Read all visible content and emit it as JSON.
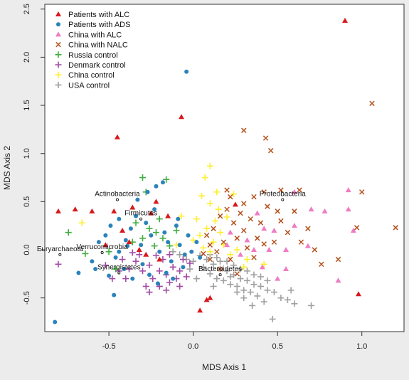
{
  "chart_data": {
    "type": "scatter",
    "xlabel": "MDS Axis 1",
    "ylabel": "MDS Axis 2",
    "xlim": [
      -0.88,
      1.25
    ],
    "ylim": [
      -0.85,
      2.55
    ],
    "xticks": [
      -0.5,
      0.0,
      0.5,
      1.0
    ],
    "yticks": [
      -0.5,
      0.0,
      0.5,
      1.0,
      1.5,
      2.0,
      2.5
    ],
    "xtick_labels": [
      "-0.5",
      "0.0",
      "0.5",
      "1.0"
    ],
    "ytick_labels": [
      "-0.5",
      "0.0",
      "0.5",
      "1.0",
      "1.5",
      "2.0",
      "2.5"
    ],
    "legend_position": "top-left",
    "series": [
      {
        "name": "Patients with ALC",
        "marker": "triangle",
        "color": "#d7191c",
        "points": [
          [
            0.9,
            2.38
          ],
          [
            -0.07,
            1.38
          ],
          [
            -0.45,
            1.17
          ],
          [
            -0.8,
            0.4
          ],
          [
            -0.7,
            0.42
          ],
          [
            -0.6,
            0.4
          ],
          [
            -0.47,
            0.4
          ],
          [
            -0.36,
            0.44
          ],
          [
            -0.22,
            0.5
          ],
          [
            -0.25,
            0.38
          ],
          [
            -0.15,
            0.35
          ],
          [
            -0.42,
            0.2
          ],
          [
            -0.38,
            0.08
          ],
          [
            -0.32,
            0.0
          ],
          [
            -0.28,
            -0.05
          ],
          [
            -0.2,
            -0.1
          ],
          [
            -0.52,
            0.05
          ],
          [
            0.04,
            -0.63
          ],
          [
            0.08,
            -0.52
          ],
          [
            0.1,
            -0.5
          ],
          [
            0.98,
            -0.46
          ],
          [
            0.25,
            0.47
          ]
        ]
      },
      {
        "name": "Patients with ADS",
        "marker": "circle",
        "color": "#2b83ba",
        "points": [
          [
            -0.04,
            1.85
          ],
          [
            -0.82,
            -0.75
          ],
          [
            -0.47,
            -0.47
          ],
          [
            -0.6,
            -0.12
          ],
          [
            -0.68,
            -0.24
          ],
          [
            -0.56,
            0.08
          ],
          [
            -0.52,
            0.15
          ],
          [
            -0.49,
            0.25
          ],
          [
            -0.44,
            0.32
          ],
          [
            -0.4,
            0.1
          ],
          [
            -0.37,
            0.22
          ],
          [
            -0.34,
            0.35
          ],
          [
            -0.31,
            0.05
          ],
          [
            -0.28,
            0.28
          ],
          [
            -0.25,
            0.15
          ],
          [
            -0.23,
            0.42
          ],
          [
            -0.2,
            -0.02
          ],
          [
            -0.17,
            0.18
          ],
          [
            -0.15,
            0.08
          ],
          [
            -0.13,
            -0.12
          ],
          [
            -0.1,
            0.25
          ],
          [
            -0.08,
            0.05
          ],
          [
            -0.05,
            -0.05
          ],
          [
            -0.03,
            0.15
          ],
          [
            -0.01,
            -0.02
          ],
          [
            -0.46,
            -0.08
          ],
          [
            -0.41,
            -0.2
          ],
          [
            -0.36,
            -0.3
          ],
          [
            -0.3,
            -0.15
          ],
          [
            -0.26,
            -0.26
          ],
          [
            -0.21,
            -0.35
          ],
          [
            -0.16,
            -0.24
          ],
          [
            -0.12,
            -0.3
          ],
          [
            -0.06,
            -0.18
          ],
          [
            -0.33,
            0.52
          ],
          [
            -0.27,
            0.6
          ],
          [
            -0.22,
            0.66
          ],
          [
            -0.18,
            0.7
          ],
          [
            -0.39,
            0.04
          ],
          [
            -0.44,
            -0.02
          ],
          [
            -0.09,
            0.32
          ],
          [
            0.02,
            0.08
          ],
          [
            0.04,
            -0.08
          ],
          [
            -0.58,
            -0.2
          ],
          [
            -0.5,
            -0.27
          ]
        ]
      },
      {
        "name": "China with ALC",
        "marker": "triangle",
        "color": "#f07cc4",
        "points": [
          [
            0.6,
            0.6
          ],
          [
            0.92,
            0.62
          ],
          [
            0.92,
            0.42
          ],
          [
            0.95,
            0.2
          ],
          [
            0.7,
            0.42
          ],
          [
            0.78,
            0.4
          ],
          [
            0.6,
            0.25
          ],
          [
            0.55,
            0.0
          ],
          [
            0.68,
            0.04
          ],
          [
            0.86,
            -0.32
          ],
          [
            0.41,
            -0.18
          ],
          [
            0.32,
            0.1
          ],
          [
            0.28,
            -0.05
          ],
          [
            0.36,
            0.0
          ],
          [
            0.48,
            0.2
          ],
          [
            0.2,
            0.05
          ],
          [
            0.5,
            -0.3
          ],
          [
            0.42,
            0.22
          ],
          [
            0.22,
            0.18
          ],
          [
            0.55,
            -0.2
          ],
          [
            0.38,
            0.38
          ],
          [
            0.45,
            0.0
          ]
        ]
      },
      {
        "name": "China with NALC",
        "marker": "x",
        "color": "#b5511e",
        "points": [
          [
            1.06,
            1.52
          ],
          [
            0.3,
            1.24
          ],
          [
            0.43,
            1.16
          ],
          [
            0.46,
            1.03
          ],
          [
            1.0,
            0.6
          ],
          [
            1.2,
            0.23
          ],
          [
            0.97,
            0.23
          ],
          [
            0.63,
            0.62
          ],
          [
            0.52,
            0.62
          ],
          [
            0.42,
            0.6
          ],
          [
            0.36,
            0.55
          ],
          [
            0.3,
            0.48
          ],
          [
            0.22,
            0.55
          ],
          [
            0.2,
            0.42
          ],
          [
            0.16,
            0.35
          ],
          [
            0.12,
            0.22
          ],
          [
            0.08,
            0.15
          ],
          [
            0.1,
            0.05
          ],
          [
            0.14,
            -0.02
          ],
          [
            0.18,
            0.08
          ],
          [
            0.24,
            0.28
          ],
          [
            0.26,
            0.12
          ],
          [
            0.3,
            0.2
          ],
          [
            0.32,
            0.02
          ],
          [
            0.34,
            0.32
          ],
          [
            0.38,
            0.12
          ],
          [
            0.4,
            0.28
          ],
          [
            0.44,
            0.45
          ],
          [
            0.48,
            0.08
          ],
          [
            0.52,
            0.3
          ],
          [
            0.56,
            0.18
          ],
          [
            0.6,
            0.4
          ],
          [
            0.64,
            0.08
          ],
          [
            0.68,
            0.22
          ],
          [
            0.72,
            0.0
          ],
          [
            0.76,
            -0.15
          ],
          [
            0.86,
            -0.1
          ],
          [
            0.22,
            -0.1
          ],
          [
            0.28,
            0.38
          ],
          [
            0.36,
            -0.08
          ],
          [
            0.42,
            0.06
          ],
          [
            0.06,
            -0.04
          ],
          [
            0.5,
            0.4
          ],
          [
            0.2,
            0.62
          ],
          [
            0.1,
            -0.1
          ],
          [
            0.16,
            -0.2
          ],
          [
            0.26,
            -0.25
          ]
        ]
      },
      {
        "name": "Russia control",
        "marker": "plus",
        "color": "#3fae3f",
        "points": [
          [
            -0.74,
            0.18
          ],
          [
            -0.64,
            -0.04
          ],
          [
            -0.3,
            0.75
          ],
          [
            -0.16,
            0.73
          ],
          [
            -0.28,
            0.6
          ],
          [
            -0.26,
            0.22
          ],
          [
            -0.22,
            0.18
          ],
          [
            -0.18,
            0.12
          ],
          [
            -0.23,
            0.04
          ],
          [
            -0.14,
            0.04
          ],
          [
            -0.5,
            -0.02
          ],
          [
            -0.46,
            -0.2
          ],
          [
            -0.34,
            0.28
          ],
          [
            -0.3,
            0.12
          ],
          [
            -0.2,
            0.32
          ],
          [
            -0.36,
            0.08
          ],
          [
            -0.1,
            0.2
          ]
        ]
      },
      {
        "name": "Denmark control",
        "marker": "plus",
        "color": "#a24aa6",
        "points": [
          [
            -0.8,
            -0.15
          ],
          [
            -0.48,
            -0.3
          ],
          [
            -0.44,
            -0.22
          ],
          [
            -0.38,
            -0.2
          ],
          [
            -0.34,
            -0.12
          ],
          [
            -0.3,
            -0.22
          ],
          [
            -0.26,
            -0.16
          ],
          [
            -0.24,
            -0.3
          ],
          [
            -0.2,
            -0.22
          ],
          [
            -0.16,
            -0.26
          ],
          [
            -0.12,
            -0.18
          ],
          [
            -0.08,
            -0.22
          ],
          [
            -0.04,
            -0.28
          ],
          [
            -0.28,
            -0.38
          ],
          [
            -0.2,
            -0.38
          ],
          [
            -0.14,
            -0.34
          ],
          [
            -0.1,
            -0.3
          ],
          [
            -0.42,
            -0.1
          ],
          [
            -0.36,
            -0.03
          ],
          [
            -0.32,
            -0.05
          ],
          [
            -0.22,
            -0.06
          ],
          [
            -0.18,
            -0.1
          ],
          [
            -0.14,
            -0.05
          ],
          [
            -0.06,
            -0.1
          ],
          [
            -0.02,
            -0.14
          ],
          [
            -0.26,
            -0.44
          ],
          [
            -0.16,
            -0.42
          ],
          [
            -0.08,
            -0.38
          ],
          [
            -0.52,
            -0.16
          ],
          [
            -0.4,
            -0.3
          ]
        ]
      },
      {
        "name": "China control",
        "marker": "plus",
        "color": "#ffee33",
        "points": [
          [
            0.1,
            0.87
          ],
          [
            0.07,
            0.75
          ],
          [
            0.14,
            0.6
          ],
          [
            0.05,
            0.56
          ],
          [
            0.1,
            0.48
          ],
          [
            0.15,
            0.42
          ],
          [
            0.02,
            0.32
          ],
          [
            -0.07,
            0.35
          ],
          [
            0.13,
            0.3
          ],
          [
            0.2,
            0.34
          ],
          [
            0.08,
            0.22
          ],
          [
            0.16,
            0.18
          ],
          [
            0.04,
            0.15
          ],
          [
            0.12,
            0.08
          ],
          [
            0.18,
            0.05
          ],
          [
            0.06,
            0.02
          ],
          [
            0.0,
            0.1
          ],
          [
            0.42,
            -0.15
          ],
          [
            0.3,
            -0.18
          ],
          [
            0.22,
            -0.05
          ],
          [
            0.1,
            -0.02
          ],
          [
            0.26,
            0.0
          ],
          [
            0.32,
            -0.1
          ],
          [
            -0.1,
            0.05
          ],
          [
            -0.66,
            0.28
          ],
          [
            0.24,
            0.58
          ]
        ]
      },
      {
        "name": "USA control",
        "marker": "plus",
        "color": "#a0a0a0",
        "points": [
          [
            0.08,
            -0.1
          ],
          [
            0.12,
            -0.15
          ],
          [
            0.16,
            -0.2
          ],
          [
            0.2,
            -0.22
          ],
          [
            0.24,
            -0.26
          ],
          [
            0.28,
            -0.3
          ],
          [
            0.32,
            -0.32
          ],
          [
            0.36,
            -0.36
          ],
          [
            0.4,
            -0.38
          ],
          [
            0.44,
            -0.42
          ],
          [
            0.48,
            -0.44
          ],
          [
            0.52,
            -0.5
          ],
          [
            0.56,
            -0.52
          ],
          [
            0.6,
            -0.56
          ],
          [
            0.7,
            -0.58
          ],
          [
            0.47,
            -0.72
          ],
          [
            0.1,
            -0.25
          ],
          [
            0.14,
            -0.3
          ],
          [
            0.18,
            -0.32
          ],
          [
            0.22,
            -0.36
          ],
          [
            0.26,
            -0.38
          ],
          [
            0.3,
            -0.42
          ],
          [
            0.34,
            -0.44
          ],
          [
            0.38,
            -0.48
          ],
          [
            0.06,
            -0.18
          ],
          [
            0.0,
            -0.12
          ],
          [
            -0.02,
            -0.2
          ],
          [
            0.04,
            -0.06
          ],
          [
            0.1,
            -0.05
          ],
          [
            0.14,
            -0.08
          ],
          [
            0.2,
            -0.12
          ],
          [
            0.24,
            -0.16
          ],
          [
            0.28,
            -0.2
          ],
          [
            0.32,
            -0.22
          ],
          [
            0.36,
            -0.26
          ],
          [
            0.4,
            -0.28
          ],
          [
            0.44,
            -0.32
          ],
          [
            -0.04,
            -0.1
          ],
          [
            -0.08,
            -0.05
          ],
          [
            -0.12,
            -0.02
          ],
          [
            0.02,
            -0.3
          ],
          [
            -0.2,
            -0.38
          ],
          [
            0.3,
            -0.5
          ],
          [
            0.42,
            -0.54
          ],
          [
            0.58,
            -0.42
          ],
          [
            0.16,
            -0.12
          ],
          [
            0.22,
            -0.28
          ],
          [
            0.26,
            -0.44
          ],
          [
            0.12,
            -0.38
          ],
          [
            0.35,
            -0.58
          ]
        ]
      }
    ],
    "annotations": [
      {
        "label": "Actinobacteria",
        "x": -0.45,
        "y": 0.52
      },
      {
        "label": "Proteobacteria",
        "x": 0.53,
        "y": 0.52
      },
      {
        "label": "Firmicutes",
        "x": -0.31,
        "y": 0.32
      },
      {
        "label": "Euryarchaeota",
        "x": -0.79,
        "y": -0.05
      },
      {
        "label": "Verrucomicrobia",
        "x": -0.54,
        "y": -0.03
      },
      {
        "label": "Synergistetes",
        "x": -0.44,
        "y": -0.24
      },
      {
        "label": "Bacteroidetes",
        "x": 0.16,
        "y": -0.26
      }
    ]
  }
}
